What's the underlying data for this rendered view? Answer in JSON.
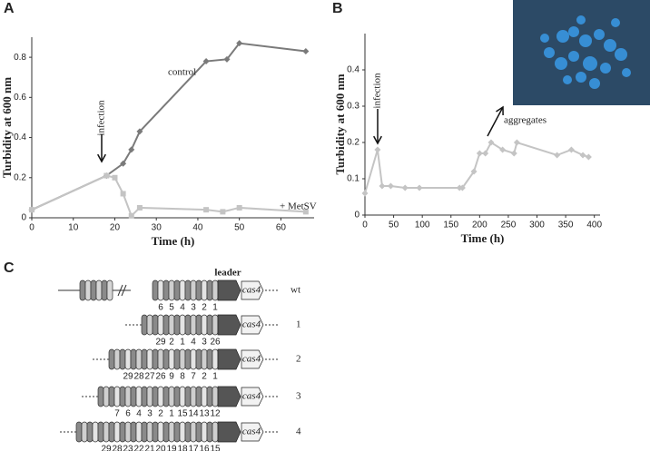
{
  "chart_data": [
    {
      "type": "line",
      "panel": "A",
      "x_label": "Time (h)",
      "y_label": "Turbidity at 600 nm",
      "xlim": [
        0,
        68
      ],
      "xticks": [
        0,
        10,
        20,
        30,
        40,
        50,
        60
      ],
      "ylim": [
        0,
        0.9
      ],
      "yticks": [
        0,
        0.2,
        0.4,
        0.6,
        0.8
      ],
      "annotations": [
        "infection"
      ],
      "series": [
        {
          "name": "control",
          "color": "#7a7a7a",
          "marker": "diamond",
          "x": [
            0,
            18,
            22,
            24,
            26,
            42,
            47,
            50,
            66
          ],
          "values": [
            0.04,
            0.21,
            0.27,
            0.34,
            0.43,
            0.78,
            0.79,
            0.87,
            0.83
          ]
        },
        {
          "name": "+ MetSV",
          "color": "#c4c4c4",
          "marker": "square",
          "x": [
            0,
            18,
            20,
            22,
            24,
            26,
            42,
            46,
            50,
            66
          ],
          "values": [
            0.04,
            0.21,
            0.2,
            0.12,
            0.01,
            0.05,
            0.04,
            0.03,
            0.05,
            0.03
          ]
        }
      ]
    },
    {
      "type": "line",
      "panel": "B",
      "x_label": "Time (h)",
      "y_label": "Turbidity at 600 nm",
      "xlim": [
        0,
        410
      ],
      "xticks": [
        0,
        50,
        100,
        150,
        200,
        250,
        300,
        350,
        400
      ],
      "ylim": [
        0,
        0.5
      ],
      "yticks": [
        0,
        0.1,
        0.2,
        0.3,
        0.4
      ],
      "annotations": [
        "infection",
        "aggregates"
      ],
      "series": [
        {
          "color": "#c4c4c4",
          "marker": "diamond",
          "x": [
            0,
            22,
            30,
            45,
            70,
            95,
            165,
            170,
            190,
            200,
            210,
            220,
            240,
            260,
            265,
            335,
            360,
            380,
            390
          ],
          "values": [
            0.06,
            0.18,
            0.08,
            0.08,
            0.075,
            0.075,
            0.075,
            0.075,
            0.12,
            0.17,
            0.17,
            0.2,
            0.18,
            0.17,
            0.2,
            0.165,
            0.18,
            0.165,
            0.16
          ]
        }
      ]
    }
  ],
  "diagram": {
    "panel": "C",
    "leader": "leader",
    "gene": "cas4",
    "rows": [
      {
        "label": "wt",
        "spacers": [
          "6",
          "5",
          "4",
          "3",
          "2",
          "1"
        ]
      },
      {
        "label": "1",
        "spacers": [
          "29",
          "2",
          "1",
          "4",
          "3",
          "26"
        ]
      },
      {
        "label": "2",
        "spacers": [
          "29",
          "28",
          "27",
          "26",
          "9",
          "8",
          "7",
          "2",
          "1"
        ]
      },
      {
        "label": "3",
        "spacers": [
          "7",
          "6",
          "4",
          "3",
          "2",
          "1",
          "15",
          "14",
          "13",
          "12"
        ]
      },
      {
        "label": "4",
        "spacers": [
          "29",
          "28",
          "23",
          "22",
          "21",
          "20",
          "19",
          "18",
          "17",
          "16",
          "15"
        ]
      }
    ]
  }
}
